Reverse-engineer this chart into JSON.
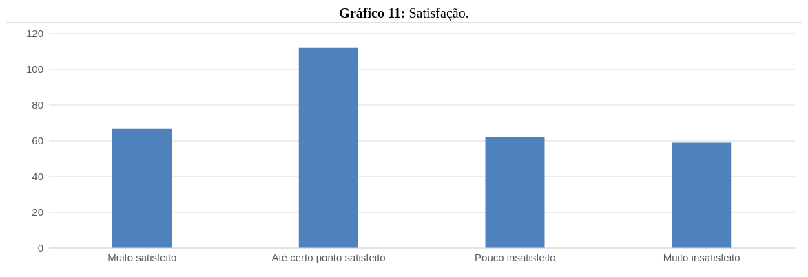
{
  "chart_data": {
    "type": "bar",
    "title": "Gráfico 11: Satisfação.",
    "categories": [
      "Muito satisfeito",
      "Até certo ponto satisfeito",
      "Pouco insatisfeito",
      "Muito insatisfeito"
    ],
    "values": [
      67,
      112,
      62,
      59
    ],
    "color": "#4f81bd",
    "ylim": [
      0,
      120
    ],
    "yticks": [
      0,
      20,
      40,
      60,
      80,
      100,
      120
    ],
    "grid": "y"
  }
}
